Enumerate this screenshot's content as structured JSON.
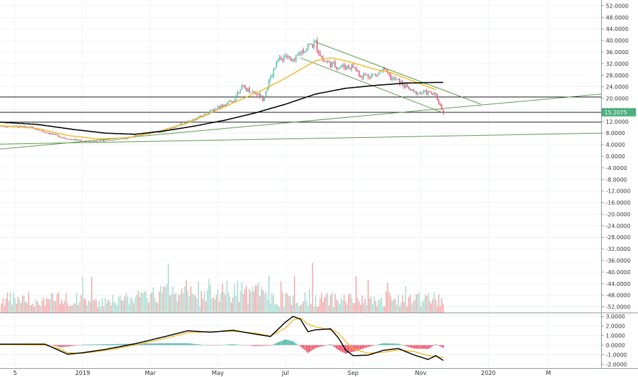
{
  "chart_data": {
    "type": "candlestick",
    "price_axis": {
      "ticks": [
        "52.0000",
        "48.0000",
        "44.0000",
        "40.0000",
        "36.0000",
        "32.0000",
        "28.0000",
        "24.0000",
        "20.0000",
        "16.0000",
        "12.0000",
        "8.0000",
        "4.0000",
        "0.0000",
        "-4.0000",
        "-8.0000",
        "-12.0000",
        "-16.0000",
        "-20.0000",
        "-24.0000",
        "-28.0000",
        "-32.0000",
        "-36.0000",
        "-40.0000",
        "-44.0000",
        "-48.0000",
        "-52.0000"
      ],
      "range": [
        -54,
        54
      ],
      "current_price": "15.2075"
    },
    "macd_axis": {
      "ticks": [
        "3.0000",
        "2.0000",
        "1.0000",
        "0.0000",
        "-1.0000",
        "-2.0000"
      ],
      "range": [
        -2.4,
        3.4
      ]
    },
    "time_axis": {
      "labels": [
        "5",
        "2019",
        "Mar",
        "May",
        "Jul",
        "Sep",
        "Nov",
        "2020",
        "M"
      ],
      "label_week_index": [
        2,
        11,
        20,
        29,
        38,
        47,
        56,
        65,
        73
      ]
    },
    "weeks": 80,
    "price_series_keypoints": [
      [
        0,
        10.5
      ],
      [
        4,
        10
      ],
      [
        9,
        6
      ],
      [
        12,
        5
      ],
      [
        16,
        6
      ],
      [
        20,
        8
      ],
      [
        22,
        9
      ],
      [
        25,
        12
      ],
      [
        27,
        14
      ],
      [
        29,
        17
      ],
      [
        31,
        19
      ],
      [
        32,
        24
      ],
      [
        34,
        22
      ],
      [
        35,
        20
      ],
      [
        36,
        27
      ],
      [
        37,
        33
      ],
      [
        38,
        35
      ],
      [
        39,
        32
      ],
      [
        40,
        36
      ],
      [
        41,
        38
      ],
      [
        42,
        39
      ],
      [
        43,
        33
      ],
      [
        45,
        31
      ],
      [
        47,
        31
      ],
      [
        48,
        28
      ],
      [
        50,
        28
      ],
      [
        51,
        30
      ],
      [
        52,
        27
      ],
      [
        53,
        26
      ],
      [
        55,
        22
      ],
      [
        57,
        22
      ],
      [
        58,
        21
      ],
      [
        59,
        15.2
      ]
    ],
    "horizontal_levels": [
      20.5,
      15.2,
      11.8
    ],
    "ma_yellow_keypoints": [
      [
        0,
        10.6
      ],
      [
        5,
        9.6
      ],
      [
        9,
        7.2
      ],
      [
        13,
        6
      ],
      [
        17,
        6.4
      ],
      [
        21,
        8.5
      ],
      [
        25,
        11.5
      ],
      [
        28,
        15
      ],
      [
        32,
        19.5
      ],
      [
        35,
        23
      ],
      [
        38,
        27
      ],
      [
        40,
        30
      ],
      [
        42,
        33
      ],
      [
        44,
        34
      ],
      [
        46,
        33
      ],
      [
        48,
        31.5
      ],
      [
        50,
        30
      ],
      [
        52,
        29
      ],
      [
        54,
        27
      ],
      [
        56,
        25
      ],
      [
        58,
        23
      ]
    ],
    "ma_black_keypoints": [
      [
        0,
        11.8
      ],
      [
        5,
        11
      ],
      [
        10,
        9.2
      ],
      [
        14,
        8
      ],
      [
        18,
        7.6
      ],
      [
        22,
        8.8
      ],
      [
        26,
        10.5
      ],
      [
        30,
        12.5
      ],
      [
        34,
        15
      ],
      [
        38,
        18
      ],
      [
        42,
        21.5
      ],
      [
        46,
        23.5
      ],
      [
        50,
        24.5
      ],
      [
        54,
        25.3
      ],
      [
        58,
        25.5
      ],
      [
        59,
        25.5
      ]
    ],
    "trendlines": [
      {
        "name": "long-uptrend",
        "x1": 0,
        "y1": 2.5,
        "x2": 80,
        "y2": 21.5
      },
      {
        "name": "shallow-support",
        "x1": 0,
        "y1": 4.2,
        "x2": 80,
        "y2": 8.0
      },
      {
        "name": "channel-top",
        "x1": 42,
        "y1": 39.5,
        "x2": 64,
        "y2": 18
      },
      {
        "name": "channel-bottom",
        "x1": 40,
        "y1": 34,
        "x2": 59,
        "y2": 15
      }
    ],
    "macd_keypoints": [
      [
        0,
        0.1
      ],
      [
        6,
        0.1
      ],
      [
        8,
        -0.6
      ],
      [
        9,
        -0.95
      ],
      [
        11,
        -0.8
      ],
      [
        14,
        -0.45
      ],
      [
        18,
        0.15
      ],
      [
        22,
        0.9
      ],
      [
        25,
        1.5
      ],
      [
        28,
        1.35
      ],
      [
        31,
        1.55
      ],
      [
        34,
        1.15
      ],
      [
        36,
        0.9
      ],
      [
        38,
        2.4
      ],
      [
        39,
        3.0
      ],
      [
        40,
        2.7
      ],
      [
        41,
        1.4
      ],
      [
        42,
        1.6
      ],
      [
        44,
        1.7
      ],
      [
        45,
        0.8
      ],
      [
        46,
        -0.5
      ],
      [
        47,
        -1.1
      ],
      [
        49,
        -1.05
      ],
      [
        51,
        -0.55
      ],
      [
        53,
        -0.35
      ],
      [
        55,
        -1.0
      ],
      [
        57,
        -1.5
      ],
      [
        58,
        -1.1
      ],
      [
        59,
        -1.6
      ]
    ],
    "signal_keypoints": [
      [
        0,
        0.05
      ],
      [
        6,
        0.0
      ],
      [
        8,
        -0.4
      ],
      [
        9,
        -0.8
      ],
      [
        11,
        -0.85
      ],
      [
        14,
        -0.55
      ],
      [
        18,
        0.0
      ],
      [
        22,
        0.7
      ],
      [
        25,
        1.3
      ],
      [
        28,
        1.4
      ],
      [
        31,
        1.45
      ],
      [
        34,
        1.25
      ],
      [
        36,
        0.95
      ],
      [
        38,
        1.8
      ],
      [
        39,
        2.6
      ],
      [
        40,
        2.85
      ],
      [
        41,
        2.2
      ],
      [
        42,
        1.9
      ],
      [
        44,
        1.6
      ],
      [
        45,
        1.3
      ],
      [
        46,
        0.4
      ],
      [
        47,
        -0.4
      ],
      [
        49,
        -0.85
      ],
      [
        51,
        -0.75
      ],
      [
        53,
        -0.5
      ],
      [
        55,
        -0.65
      ],
      [
        57,
        -1.1
      ],
      [
        58,
        -1.2
      ],
      [
        59,
        -1.3
      ]
    ],
    "grid": true,
    "colors": {
      "up": "#53b9a8",
      "down": "#e0506a",
      "vol_up": "#a7dbd1",
      "vol_down": "#f2a7a7",
      "ma_fast": "#f2b61d",
      "ma_slow": "#000000",
      "trend": "#5a9a48",
      "grid": "#f0f3f7",
      "axis_border": "#8f98a3",
      "price_label_bg": "#4caf7e",
      "hist_up": "#2ea896",
      "hist_down": "#e8364f"
    }
  }
}
